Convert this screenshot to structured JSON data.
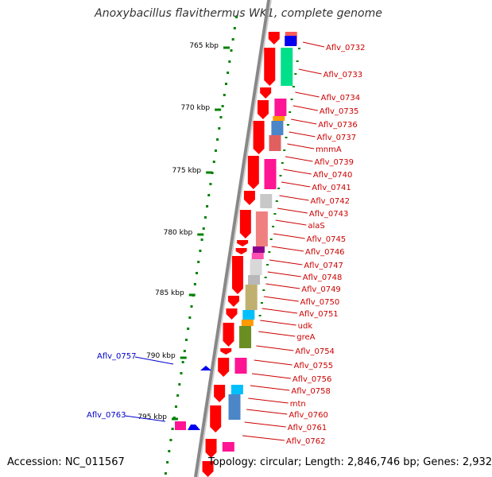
{
  "title": "Anoxybacillus flavithermus WK1, complete genome",
  "accession": "Accession: NC_011567",
  "topology": "Topology: circular; Length: 2,846,746 bp; Genes: 2,932",
  "ticks": [
    "765 kbp",
    "770 kbp",
    "775 kbp",
    "780 kbp",
    "785 kbp",
    "790 kbp",
    "795 kbp"
  ],
  "right_labels": [
    "Aflv_0732",
    "Aflv_0733",
    "Aflv_0734",
    "Aflv_0735",
    "Aflv_0736",
    "Aflv_0737",
    "mnmA",
    "Aflv_0739",
    "Aflv_0740",
    "Aflv_0741",
    "Aflv_0742",
    "Aflv_0743",
    "alaS",
    "Aflv_0745",
    "Aflv_0746",
    "Aflv_0747",
    "Aflv_0748",
    "Aflv_0749",
    "Aflv_0750",
    "Aflv_0751",
    "udk",
    "greA",
    "Aflv_0754",
    "Aflv_0755",
    "Aflv_0756",
    "Aflv_0758",
    "mtn",
    "Aflv_0760",
    "Aflv_0761",
    "Aflv_0762"
  ],
  "left_labels": [
    "Aflv_0757",
    "Aflv_0763"
  ],
  "colors": {
    "gene": "#ff0000",
    "label_right": "#cc0000",
    "label_left": "#0000cc",
    "tick": "#008000",
    "backbone": "#888888"
  }
}
